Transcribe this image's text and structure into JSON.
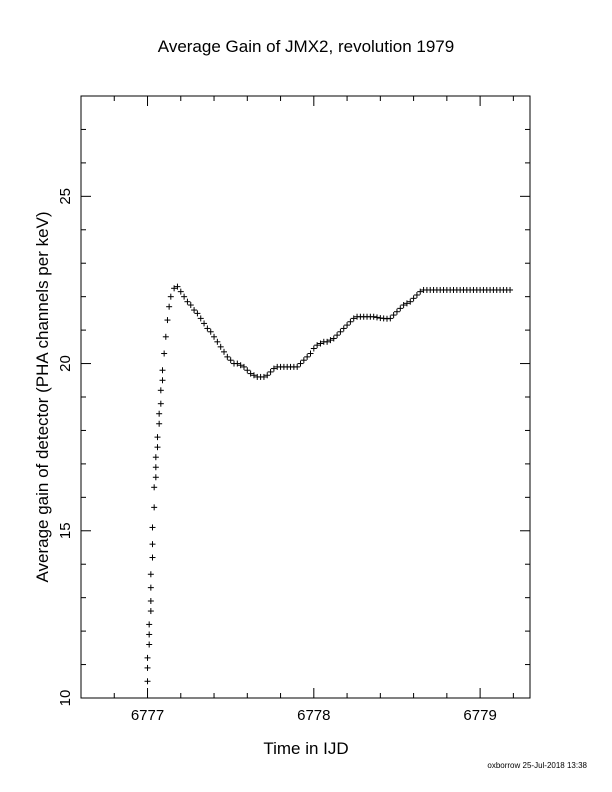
{
  "chart_data": {
    "type": "scatter",
    "title": "Average Gain of JMX2, revolution 1979",
    "xlabel": "Time in IJD",
    "ylabel": "Average gain of detector (PHA channels per keV)",
    "xlim": [
      6776.6,
      6779.3
    ],
    "ylim": [
      10,
      28
    ],
    "xticks": [
      6777,
      6778,
      6779
    ],
    "xtick_labels": [
      "6777",
      "6778",
      "6779"
    ],
    "yticks": [
      10,
      15,
      20,
      25
    ],
    "ytick_labels": [
      "10",
      "15",
      "20",
      "25"
    ],
    "marker": "plus",
    "color": "#000000",
    "grid": false,
    "series": [
      {
        "x": [
          6777.0,
          6777.0,
          6777.0,
          6777.01,
          6777.01,
          6777.01,
          6777.02,
          6777.02,
          6777.02,
          6777.02,
          6777.03,
          6777.03,
          6777.03,
          6777.04,
          6777.04,
          6777.05,
          6777.05,
          6777.05,
          6777.06,
          6777.06,
          6777.07,
          6777.07,
          6777.08,
          6777.08,
          6777.09,
          6777.09,
          6777.1,
          6777.11,
          6777.12,
          6777.13,
          6777.14,
          6777.16,
          6777.18,
          6777.2,
          6777.22,
          6777.24,
          6777.26,
          6777.28,
          6777.3,
          6777.32,
          6777.34,
          6777.36,
          6777.38,
          6777.4,
          6777.42,
          6777.44,
          6777.46,
          6777.48,
          6777.5,
          6777.52,
          6777.54,
          6777.56,
          6777.58,
          6777.6,
          6777.62,
          6777.64,
          6777.66,
          6777.68,
          6777.7,
          6777.72,
          6777.74,
          6777.76,
          6777.78,
          6777.8,
          6777.82,
          6777.84,
          6777.86,
          6777.88,
          6777.9,
          6777.92,
          6777.94,
          6777.96,
          6777.98,
          6778.0,
          6778.02,
          6778.04,
          6778.06,
          6778.08,
          6778.1,
          6778.12,
          6778.14,
          6778.16,
          6778.18,
          6778.2,
          6778.22,
          6778.24,
          6778.26,
          6778.28,
          6778.3,
          6778.32,
          6778.34,
          6778.36,
          6778.38,
          6778.4,
          6778.42,
          6778.44,
          6778.46,
          6778.48,
          6778.5,
          6778.52,
          6778.54,
          6778.56,
          6778.58,
          6778.6,
          6778.62,
          6778.64,
          6778.66,
          6778.68,
          6778.7,
          6778.72,
          6778.74,
          6778.76,
          6778.78,
          6778.8,
          6778.82,
          6778.84,
          6778.86,
          6778.88,
          6778.9,
          6778.92,
          6778.94,
          6778.96,
          6778.98,
          6779.0,
          6779.02,
          6779.04,
          6779.06,
          6779.08,
          6779.1,
          6779.12,
          6779.14,
          6779.16,
          6779.18
        ],
        "y": [
          10.5,
          10.9,
          11.2,
          11.6,
          11.9,
          12.2,
          12.6,
          12.9,
          13.3,
          13.7,
          14.2,
          14.6,
          15.1,
          15.7,
          16.3,
          16.6,
          16.9,
          17.2,
          17.5,
          17.8,
          18.2,
          18.5,
          18.8,
          19.2,
          19.5,
          19.8,
          20.3,
          20.8,
          21.3,
          21.7,
          22.0,
          22.25,
          22.3,
          22.15,
          22.0,
          21.85,
          21.75,
          21.6,
          21.5,
          21.35,
          21.2,
          21.05,
          20.95,
          20.8,
          20.65,
          20.5,
          20.35,
          20.2,
          20.1,
          20.0,
          20.0,
          19.95,
          19.9,
          19.8,
          19.7,
          19.65,
          19.6,
          19.6,
          19.6,
          19.65,
          19.75,
          19.85,
          19.9,
          19.9,
          19.9,
          19.9,
          19.9,
          19.9,
          19.9,
          20.0,
          20.1,
          20.2,
          20.3,
          20.45,
          20.55,
          20.6,
          20.65,
          20.65,
          20.7,
          20.75,
          20.85,
          20.95,
          21.05,
          21.15,
          21.25,
          21.35,
          21.4,
          21.4,
          21.4,
          21.4,
          21.4,
          21.4,
          21.38,
          21.36,
          21.35,
          21.34,
          21.35,
          21.45,
          21.55,
          21.65,
          21.75,
          21.8,
          21.85,
          21.95,
          22.05,
          22.15,
          22.2,
          22.2,
          22.2,
          22.2,
          22.2,
          22.2,
          22.2,
          22.2,
          22.2,
          22.2,
          22.2,
          22.2,
          22.2,
          22.2,
          22.2,
          22.2,
          22.2,
          22.2,
          22.2,
          22.2,
          22.2,
          22.2,
          22.2,
          22.2,
          22.2,
          22.2,
          22.2
        ]
      }
    ]
  },
  "footer": {
    "credit": "oxborrow 25-Jul-2018 13:38"
  }
}
